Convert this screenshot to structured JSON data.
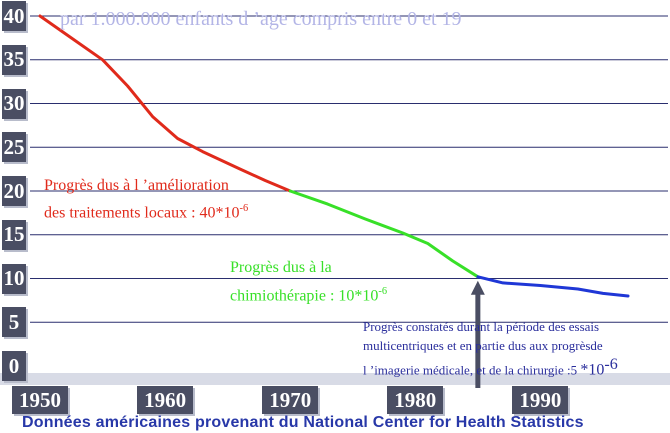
{
  "subtitle": "par 1.000.000 enfants d ’age compris entre 0 et 19",
  "source_note": "Données américaines provenant du National Center for Health Statistics",
  "annotations": {
    "local": {
      "line1": "Progrès dus à l ’amélioration",
      "line2": "des traitements locaux : 40*10",
      "exp": "-6"
    },
    "chemo": {
      "line1": "Progrès dus à la",
      "line2": "chimiothérapie : 10*10",
      "exp": "-6"
    },
    "imaging": {
      "line1": "Progrès constatés durant la période des essais",
      "line2": "multicentriques et en partie dus  aux progrèsde",
      "line3": "l ’imagerie  médicale, et de la chirurgie :5 ",
      "big": "*10",
      "exp": "-6"
    }
  },
  "colors": {
    "local": "#e02a1b",
    "chemo": "#38e028",
    "imaging": "#1f37d6",
    "grid": "#2a2e6e",
    "tick_bg": "#4a4e63",
    "arrow": "#4a4e63"
  },
  "chart_data": {
    "type": "line",
    "title": "",
    "xlabel": "",
    "ylabel": "",
    "xlim": [
      1950,
      1999
    ],
    "ylim": [
      0,
      40
    ],
    "x_ticks": [
      1950,
      1960,
      1970,
      1980,
      1990
    ],
    "y_ticks": [
      0,
      5,
      10,
      15,
      20,
      25,
      30,
      35,
      40
    ],
    "grid": true,
    "series": [
      {
        "key": "local",
        "color": "#e02a1b",
        "points": [
          [
            1950,
            40
          ],
          [
            1952,
            38
          ],
          [
            1955,
            35
          ],
          [
            1957,
            32
          ],
          [
            1959,
            28.5
          ],
          [
            1961,
            26
          ],
          [
            1963,
            24.5
          ],
          [
            1966,
            22.5
          ],
          [
            1968,
            21.2
          ],
          [
            1970,
            20
          ]
        ]
      },
      {
        "key": "chemo",
        "color": "#38e028",
        "points": [
          [
            1970,
            20
          ],
          [
            1973,
            18.5
          ],
          [
            1976,
            16.8
          ],
          [
            1979,
            15.2
          ],
          [
            1981,
            14
          ],
          [
            1983,
            12
          ],
          [
            1985,
            10.2
          ]
        ]
      },
      {
        "key": "imaging",
        "color": "#1f37d6",
        "points": [
          [
            1985,
            10.2
          ],
          [
            1987,
            9.5
          ],
          [
            1990,
            9.2
          ],
          [
            1993,
            8.8
          ],
          [
            1995,
            8.3
          ],
          [
            1997,
            8
          ]
        ]
      }
    ],
    "arrow_at_year": 1985
  }
}
